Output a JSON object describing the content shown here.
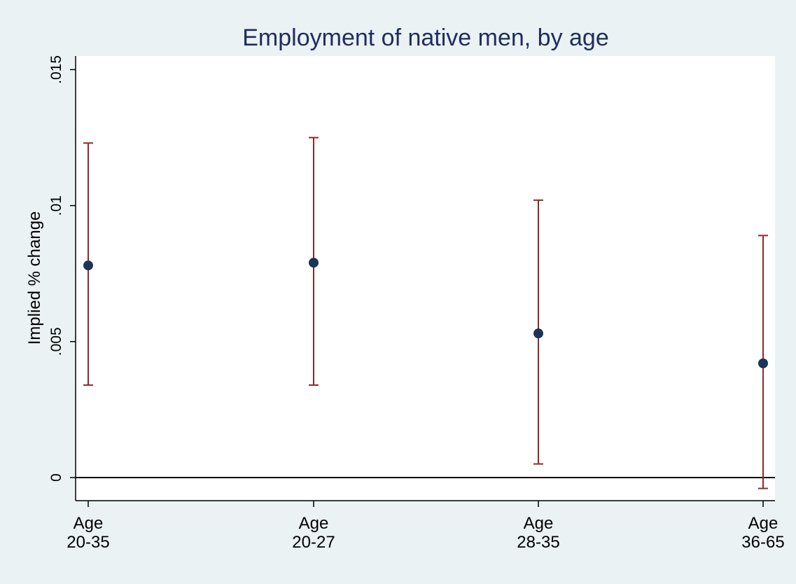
{
  "colors": {
    "background": "#eaf2f3",
    "plot_background": "#ffffff",
    "title": "#1f2d5e",
    "point": "#1a3556",
    "error_bar": "#8c2a2a",
    "axis": "#000000"
  },
  "chart_data": {
    "type": "scatter",
    "title": "Employment of native men, by age",
    "xlabel": "",
    "ylabel": "Implied % change",
    "ylim": [
      -0.00085,
      0.0155
    ],
    "yticks": [
      {
        "value": 0,
        "label": "0"
      },
      {
        "value": 0.005,
        "label": ".005"
      },
      {
        "value": 0.01,
        "label": ".01"
      },
      {
        "value": 0.015,
        "label": ".015"
      }
    ],
    "reference_line": 0,
    "grid": false,
    "categories": [
      {
        "line1": "Age",
        "line2": "20-35"
      },
      {
        "line1": "Age",
        "line2": "20-27"
      },
      {
        "line1": "Age",
        "line2": "28-35"
      },
      {
        "line1": "Age",
        "line2": "36-65"
      }
    ],
    "points": [
      {
        "estimate": 0.0078,
        "lower": 0.0034,
        "upper": 0.0123
      },
      {
        "estimate": 0.0079,
        "lower": 0.0034,
        "upper": 0.0125
      },
      {
        "estimate": 0.0053,
        "lower": 0.0005,
        "upper": 0.0102
      },
      {
        "estimate": 0.0042,
        "lower": -0.0004,
        "upper": 0.0089
      }
    ]
  }
}
